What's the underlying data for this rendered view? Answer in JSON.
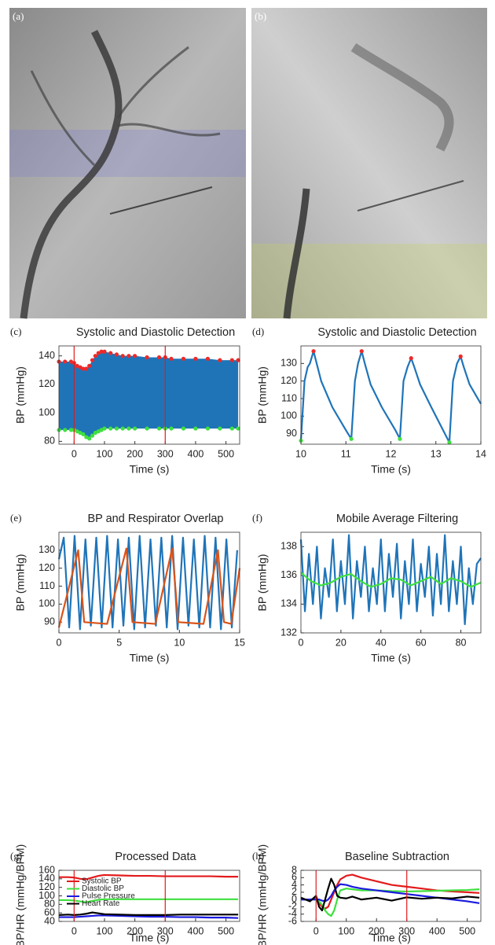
{
  "images": [
    {
      "label": "(a)"
    },
    {
      "label": "(b)"
    }
  ],
  "chart_data": [
    {
      "type": "range",
      "label": "(c)",
      "title": "Systolic and Diastolic Detection",
      "xlabel": "Time (s)",
      "ylabel": "BP (mmHg)",
      "fill": "#1f74b8",
      "vlines": [
        0,
        300
      ],
      "vline_color": "#e31a1c",
      "x": [
        -50,
        -30,
        -10,
        0,
        10,
        20,
        30,
        40,
        50,
        60,
        70,
        80,
        90,
        100,
        120,
        140,
        160,
        180,
        200,
        240,
        280,
        300,
        320,
        360,
        400,
        440,
        480,
        520,
        540
      ],
      "series": [
        {
          "style": "markers",
          "color": "#ec2a2a",
          "values": [
            136,
            136,
            136,
            135,
            133,
            132,
            131,
            131,
            133,
            137,
            140,
            142,
            143,
            143,
            142,
            141,
            140,
            140,
            140,
            139,
            139,
            139,
            138,
            138,
            138,
            138,
            137,
            137,
            137
          ]
        },
        {
          "style": "markers",
          "color": "#3ee03e",
          "values": [
            88,
            88,
            88,
            88,
            87,
            86,
            85,
            83,
            82,
            84,
            86,
            87,
            88,
            89,
            89,
            89,
            89,
            89,
            89,
            89,
            89,
            89,
            89,
            89,
            89,
            89,
            89,
            89,
            89
          ]
        }
      ],
      "xlim": [
        -50,
        545
      ],
      "xticks": [
        0,
        100,
        200,
        300,
        400,
        500
      ],
      "ylim": [
        78,
        147
      ],
      "yticks": [
        80,
        100,
        120,
        140
      ]
    },
    {
      "type": "line",
      "label": "(d)",
      "title": "Systolic and Diastolic Detection",
      "xlabel": "Time (s)",
      "ylabel": "BP (mmHg)",
      "series": [
        {
          "style": "line",
          "color": "#1f74b8",
          "x": [
            10,
            10.08,
            10.15,
            10.2,
            10.28,
            10.35,
            10.45,
            10.7,
            11,
            11.12,
            11.2,
            11.27,
            11.35,
            11.42,
            11.55,
            11.8,
            12.1,
            12.2,
            12.28,
            12.37,
            12.45,
            12.52,
            12.65,
            12.9,
            13.2,
            13.3,
            13.38,
            13.47,
            13.55,
            13.62,
            13.75,
            14
          ],
          "values": [
            86,
            120,
            128,
            130,
            137,
            130,
            120,
            105,
            92,
            87,
            120,
            130,
            137,
            130,
            118,
            105,
            92,
            87,
            120,
            128,
            133,
            128,
            118,
            105,
            90,
            85,
            120,
            130,
            134,
            128,
            118,
            107
          ]
        },
        {
          "style": "markers",
          "color": "#ec2a2a",
          "x": [
            10.28,
            11.35,
            12.45,
            13.55
          ],
          "values": [
            137,
            137,
            133,
            134
          ]
        },
        {
          "style": "markers",
          "color": "#3ee03e",
          "x": [
            10,
            11.12,
            12.2,
            13.3
          ],
          "values": [
            86,
            87,
            87,
            85
          ]
        }
      ],
      "xlim": [
        10,
        14
      ],
      "xticks": [
        10,
        11,
        12,
        13,
        14
      ],
      "ylim": [
        84,
        140
      ],
      "yticks": [
        90,
        100,
        110,
        120,
        130
      ]
    },
    {
      "type": "line",
      "label": "(e)",
      "title": "BP and Respirator Overlap",
      "xlabel": "Time (s)",
      "ylabel": "BP (mmHg)",
      "series": [
        {
          "style": "line",
          "color": "#1f74b8",
          "x": [
            0,
            0.4,
            0.85,
            1.3,
            1.75,
            2.2,
            2.65,
            3.1,
            3.55,
            4,
            4.45,
            4.9,
            5.35,
            5.8,
            6.25,
            6.7,
            7.15,
            7.6,
            8.05,
            8.5,
            8.95,
            9.4,
            9.85,
            10.3,
            10.75,
            11.2,
            11.65,
            12.1,
            12.55,
            13,
            13.45,
            13.9,
            14.35,
            14.8
          ],
          "values": [
            125,
            137,
            87,
            138,
            86,
            136,
            88,
            137,
            87,
            138,
            87,
            136,
            88,
            137,
            86,
            138,
            87,
            136,
            88,
            137,
            87,
            138,
            86,
            137,
            88,
            136,
            87,
            138,
            87,
            137,
            86,
            136,
            87,
            130
          ]
        },
        {
          "style": "line",
          "color": "#d95319",
          "x": [
            0,
            1.6,
            2.1,
            4,
            5.6,
            6.1,
            8,
            9.4,
            9.9,
            12,
            13.2,
            13.7,
            14.3,
            15
          ],
          "values": [
            87,
            130,
            90,
            89,
            131,
            90,
            89,
            131,
            90,
            89,
            130,
            90,
            89,
            120
          ]
        }
      ],
      "xlim": [
        0,
        15
      ],
      "xticks": [
        0,
        5,
        10,
        15
      ],
      "ylim": [
        84,
        140
      ],
      "yticks": [
        90,
        100,
        110,
        120,
        130
      ]
    },
    {
      "type": "line",
      "label": "(f)",
      "title": "Mobile Average Filtering",
      "xlabel": "Time (s)",
      "ylabel": "BP (mmHg)",
      "series": [
        {
          "style": "line",
          "color": "#1f74b8",
          "x": [
            0,
            2,
            4,
            6,
            8,
            10,
            12,
            14,
            16,
            18,
            20,
            22,
            24,
            26,
            28,
            30,
            32,
            34,
            36,
            38,
            40,
            42,
            44,
            46,
            48,
            50,
            52,
            54,
            56,
            58,
            60,
            62,
            64,
            66,
            68,
            70,
            72,
            74,
            76,
            78,
            80,
            82,
            84,
            86,
            88,
            90
          ],
          "values": [
            138.5,
            133.5,
            137.5,
            134,
            138,
            133,
            136.5,
            134.5,
            138.5,
            133.5,
            137,
            134,
            138.8,
            133,
            137,
            134.5,
            138,
            133.5,
            136.5,
            134,
            138.5,
            133.5,
            137.5,
            134.5,
            138.2,
            133,
            137,
            134,
            138.5,
            133.5,
            136.8,
            134.5,
            138,
            133.2,
            137.5,
            134,
            138.8,
            133.5,
            137,
            134,
            138,
            132.6,
            136.5,
            134,
            136.8,
            137.2
          ]
        },
        {
          "style": "line",
          "color": "#3ee03e",
          "x": [
            0,
            5,
            10,
            15,
            20,
            25,
            30,
            35,
            40,
            45,
            50,
            55,
            60,
            65,
            70,
            75,
            80,
            85,
            90
          ],
          "values": [
            136.2,
            135.6,
            135.3,
            135.5,
            135.9,
            136.1,
            135.6,
            135.2,
            135.4,
            135.8,
            135.7,
            135.3,
            135.6,
            135.9,
            135.4,
            135.8,
            135.6,
            135.2,
            135.5
          ]
        }
      ],
      "xlim": [
        0,
        90
      ],
      "xticks": [
        0,
        20,
        40,
        60,
        80
      ],
      "ylim": [
        132,
        139
      ],
      "yticks": [
        132,
        134,
        136,
        138
      ]
    },
    {
      "type": "line",
      "label": "(g)",
      "title": "Processed Data",
      "xlabel": "Time (s)",
      "ylabel": "BP/HR (mmHg/BPM)",
      "vlines": [
        0,
        300
      ],
      "vline_color": "#e31a1c",
      "legend": "upper left",
      "x": [
        -50,
        -20,
        0,
        20,
        40,
        60,
        80,
        100,
        150,
        200,
        250,
        300,
        350,
        400,
        450,
        500,
        540
      ],
      "series": [
        {
          "name": "Systolic BP",
          "style": "line",
          "color": "#e31a1c",
          "values": [
            144,
            144,
            143,
            140,
            139,
            143,
            147,
            149,
            148,
            147,
            147,
            146,
            146,
            146,
            146,
            145,
            145
          ]
        },
        {
          "name": "Diastolic BP",
          "style": "line",
          "color": "#3ee03e",
          "values": [
            90,
            90,
            89,
            87,
            85,
            88,
            91,
            92,
            92,
            92,
            92,
            92,
            92,
            92,
            92,
            92,
            92
          ]
        },
        {
          "name": "Pulse Pressure",
          "style": "line",
          "color": "#1a1ae0",
          "values": [
            50,
            50,
            50,
            51,
            52,
            53,
            54,
            54,
            53,
            52,
            51,
            51,
            50,
            50,
            49,
            49,
            48
          ]
        },
        {
          "name": "Heart Rate",
          "style": "line",
          "color": "#000000",
          "values": [
            55,
            56,
            55,
            56,
            58,
            61,
            59,
            57,
            56,
            55,
            55,
            55,
            56,
            56,
            56,
            56,
            56
          ]
        }
      ],
      "xlim": [
        -50,
        545
      ],
      "xticks": [
        0,
        100,
        200,
        300,
        400,
        500
      ],
      "ylim": [
        40,
        160
      ],
      "yticks": [
        40,
        60,
        80,
        100,
        120,
        140,
        160
      ]
    },
    {
      "type": "line",
      "label": "(h)",
      "title": "Baseline Subtraction",
      "xlabel": "Time (s)",
      "ylabel": "BP/HR (mmHg/BPM)",
      "vlines": [
        0,
        300
      ],
      "vline_color": "#e31a1c",
      "x": [
        -50,
        -20,
        0,
        10,
        20,
        30,
        40,
        50,
        60,
        70,
        80,
        100,
        120,
        150,
        200,
        250,
        300,
        350,
        400,
        450,
        500,
        540
      ],
      "series": [
        {
          "style": "line",
          "color": "#e31a1c",
          "values": [
            0,
            0,
            0.2,
            -1,
            -2,
            -2.5,
            -2,
            0,
            2,
            4,
            5.5,
            6.5,
            6.8,
            6,
            5,
            4,
            3.5,
            3,
            2.5,
            2.2,
            2,
            1.8
          ]
        },
        {
          "style": "line",
          "color": "#3ee03e",
          "values": [
            0,
            0,
            0,
            -0.5,
            -1.5,
            -3,
            -4,
            -4.5,
            -3,
            0,
            2.5,
            3,
            2.8,
            2.5,
            2.5,
            2.3,
            2.2,
            2.3,
            2.4,
            2.5,
            2.6,
            2.8
          ]
        },
        {
          "style": "line",
          "color": "#1a1ae0",
          "values": [
            0,
            0,
            0,
            0,
            -0.3,
            -0.5,
            0,
            1,
            2.5,
            3.5,
            4.2,
            4,
            3.5,
            3,
            2.5,
            2,
            1.5,
            1,
            0.5,
            0,
            -0.5,
            -1
          ]
        },
        {
          "style": "line",
          "color": "#000000",
          "values": [
            0.5,
            -0.5,
            1,
            -2,
            -3,
            0,
            3,
            5.7,
            4,
            1,
            0.5,
            0.3,
            0.8,
            0,
            0.5,
            -0.3,
            0.6,
            0.2,
            0.5,
            0.3,
            0.8,
            0.5
          ]
        }
      ],
      "xlim": [
        -50,
        545
      ],
      "xticks": [
        0,
        100,
        200,
        300,
        400,
        500
      ],
      "ylim": [
        -6,
        8
      ],
      "yticks": [
        -6,
        -4,
        -2,
        0,
        2,
        4,
        6,
        8
      ]
    }
  ]
}
